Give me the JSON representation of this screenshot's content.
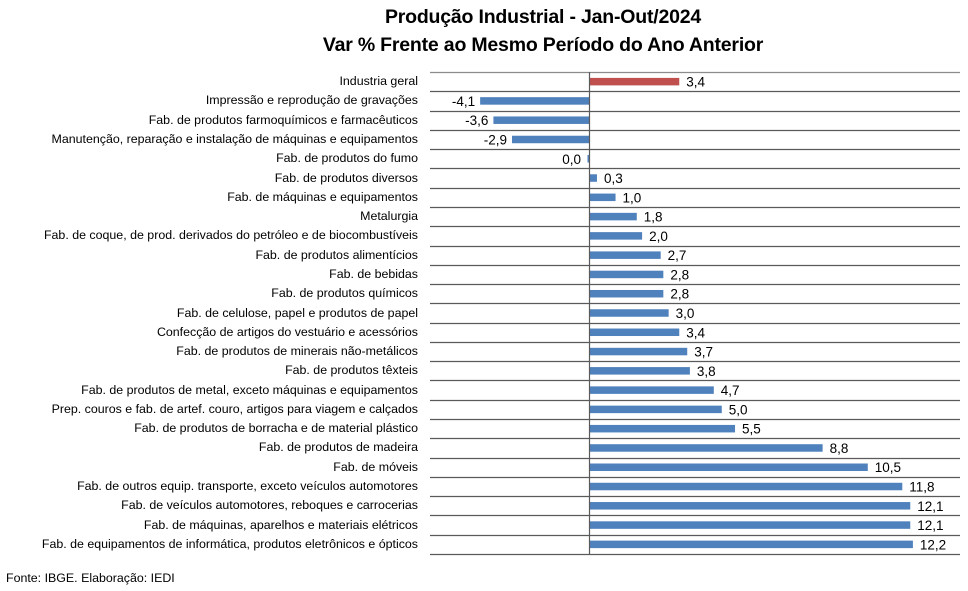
{
  "chart_data": {
    "type": "bar",
    "orientation": "horizontal",
    "title": "Produção Industrial - Jan-Out/2024",
    "subtitle": "Var % Frente ao Mesmo Período do Ano Anterior",
    "xlabel": "",
    "ylabel": "",
    "xlim": [
      -5,
      15
    ],
    "grid": "horizontal separators between categories",
    "legend": "none",
    "decimal_separator": ",",
    "highlight_color": "#C0504D",
    "bar_color": "#4F81BD",
    "categories": [
      "Industria geral",
      "Impressão e reprodução de gravações",
      "Fab. de produtos farmoquímicos e farmacêuticos",
      "Manutenção, reparação e instalação de máquinas e equipamentos",
      "Fab. de produtos do fumo",
      "Fab. de produtos diversos",
      "Fab. de máquinas e equipamentos",
      "Metalurgia",
      "Fab. de coque, de prod. derivados do petróleo e de biocombustíveis",
      "Fab. de produtos alimentícios",
      "Fab. de bebidas",
      "Fab. de produtos químicos",
      "Fab. de celulose, papel e produtos de papel",
      "Confecção de artigos do vestuário e acessórios",
      "Fab. de produtos de minerais não-metálicos",
      "Fab. de produtos têxteis",
      "Fab. de produtos de metal, exceto máquinas e equipamentos",
      "Prep. couros e fab. de artef. couro, artigos para viagem e calçados",
      "Fab. de produtos de borracha e de material plástico",
      "Fab. de produtos de madeira",
      "Fab. de móveis",
      "Fab. de outros equip. transporte, exceto veículos automotores",
      "Fab. de veículos automotores, reboques e carrocerias",
      "Fab. de máquinas, aparelhos e materiais elétricos",
      "Fab. de equipamentos de informática, produtos eletrônicos e ópticos"
    ],
    "values": [
      3.4,
      -4.1,
      -3.6,
      -2.9,
      0.0,
      0.3,
      1.0,
      1.8,
      2.0,
      2.7,
      2.8,
      2.8,
      3.0,
      3.4,
      3.7,
      3.8,
      4.7,
      5.0,
      5.5,
      8.8,
      10.5,
      11.8,
      12.1,
      12.1,
      12.2
    ],
    "data_labels": [
      "3,4",
      "-4,1",
      "-3,6",
      "-2,9",
      "0,0",
      "0,3",
      "1,0",
      "1,8",
      "2,0",
      "2,7",
      "2,8",
      "2,8",
      "3,0",
      "3,4",
      "3,7",
      "3,8",
      "4,7",
      "5,0",
      "5,5",
      "8,8",
      "10,5",
      "11,8",
      "12,1",
      "12,1",
      "12,2"
    ],
    "highlighted": [
      0
    ],
    "source": "Fonte: IBGE. Elaboração: IEDI"
  }
}
